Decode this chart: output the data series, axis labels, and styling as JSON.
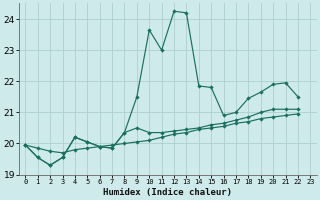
{
  "xlabel": "Humidex (Indice chaleur)",
  "xlim": [
    -0.5,
    23.5
  ],
  "ylim": [
    19.0,
    24.5
  ],
  "yticks": [
    19,
    20,
    21,
    22,
    23,
    24
  ],
  "xticks": [
    0,
    1,
    2,
    3,
    4,
    5,
    6,
    7,
    8,
    9,
    10,
    11,
    12,
    13,
    14,
    15,
    16,
    17,
    18,
    19,
    20,
    21,
    22,
    23
  ],
  "background_color": "#ceeaea",
  "grid_color": "#aecece",
  "line_color": "#1a7060",
  "series1_x": [
    0,
    1,
    2,
    3,
    4,
    5,
    6,
    7,
    8,
    9,
    10,
    11,
    12,
    13,
    14,
    15,
    16,
    17,
    18,
    19,
    20,
    21,
    22
  ],
  "series1_y": [
    19.95,
    19.55,
    19.3,
    19.55,
    20.2,
    20.05,
    19.9,
    19.85,
    20.35,
    21.5,
    23.65,
    23.0,
    24.25,
    24.2,
    21.85,
    21.8,
    20.9,
    21.0,
    21.45,
    21.65,
    21.9,
    21.95,
    21.5
  ],
  "series2_x": [
    0,
    1,
    2,
    3,
    4,
    5,
    6,
    7,
    8,
    9,
    10,
    11,
    12,
    13,
    14,
    15,
    16,
    17,
    18,
    19,
    20,
    21,
    22
  ],
  "series2_y": [
    19.95,
    19.55,
    19.3,
    19.55,
    20.2,
    20.05,
    19.9,
    19.85,
    20.35,
    20.5,
    20.35,
    20.35,
    20.4,
    20.45,
    20.5,
    20.6,
    20.65,
    20.75,
    20.85,
    21.0,
    21.1,
    21.1,
    21.1
  ],
  "series3_x": [
    0,
    1,
    2,
    3,
    4,
    5,
    6,
    7,
    8,
    9,
    10,
    11,
    12,
    13,
    14,
    15,
    16,
    17,
    18,
    19,
    20,
    21,
    22
  ],
  "series3_y": [
    19.95,
    19.85,
    19.75,
    19.7,
    19.8,
    19.85,
    19.9,
    19.95,
    20.0,
    20.05,
    20.1,
    20.2,
    20.3,
    20.35,
    20.45,
    20.5,
    20.55,
    20.65,
    20.7,
    20.8,
    20.85,
    20.9,
    20.95
  ]
}
